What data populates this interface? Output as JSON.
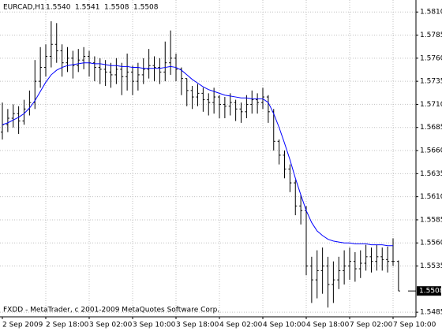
{
  "chart_data": {
    "type": "ohlc",
    "title": "EURCAD,H1",
    "quote": [
      "1.5540",
      "1.5541",
      "1.5508",
      "1.5508"
    ],
    "footer": "FXDD - MetaTrader, c 2001-2009 MetaQuotes Software Corp.",
    "categories": [
      "2 Sep 2009",
      null,
      null,
      null,
      null,
      null,
      null,
      null,
      "2 Sep 18:00",
      null,
      null,
      null,
      null,
      null,
      null,
      null,
      "3 Sep 02:00",
      null,
      null,
      null,
      null,
      null,
      null,
      null,
      "3 Sep 10:00",
      null,
      null,
      null,
      null,
      null,
      null,
      null,
      "3 Sep 18:00",
      null,
      null,
      null,
      null,
      null,
      null,
      null,
      "4 Sep 02:00",
      null,
      null,
      null,
      null,
      null,
      null,
      null,
      "4 Sep 10:00",
      null,
      null,
      null,
      null,
      null,
      null,
      null,
      "4 Sep 18:00",
      null,
      null,
      null,
      null,
      null,
      null,
      null,
      "7 Sep 02:00",
      null,
      null,
      null,
      null,
      null,
      null,
      null,
      "7 Sep 10:00",
      null
    ],
    "open": [
      1.568,
      1.5688,
      1.5695,
      1.57,
      1.5692,
      1.5705,
      1.5712,
      1.5735,
      1.575,
      1.5762,
      1.5775,
      1.5768,
      1.5755,
      1.576,
      1.5752,
      1.5758,
      1.5762,
      1.5755,
      1.575,
      1.5748,
      1.5745,
      1.5742,
      1.5748,
      1.574,
      1.5745,
      1.5735,
      1.5742,
      1.5748,
      1.5752,
      1.575,
      1.5745,
      1.5755,
      1.576,
      1.5748,
      1.5738,
      1.5725,
      1.5718,
      1.5722,
      1.5715,
      1.5712,
      1.5718,
      1.571,
      1.5708,
      1.5712,
      1.5705,
      1.5702,
      1.571,
      1.5715,
      1.5712,
      1.5718,
      1.5702,
      1.567,
      1.5655,
      1.564,
      1.5625,
      1.56,
      1.5595,
      1.5535,
      1.552,
      1.553,
      1.5535,
      1.5515,
      1.552,
      1.553,
      1.5535,
      1.554,
      1.5532,
      1.5538,
      1.5545,
      1.554,
      1.5545,
      1.5542,
      1.554,
      1.554
    ],
    "high": [
      1.5712,
      1.5705,
      1.571,
      1.5708,
      1.5715,
      1.5725,
      1.5758,
      1.5772,
      1.5775,
      1.58,
      1.5798,
      1.5775,
      1.5772,
      1.5768,
      1.577,
      1.5772,
      1.5768,
      1.5762,
      1.576,
      1.5758,
      1.5755,
      1.576,
      1.5755,
      1.5765,
      1.5752,
      1.5755,
      1.576,
      1.577,
      1.5762,
      1.576,
      1.5778,
      1.579,
      1.5765,
      1.575,
      1.5738,
      1.573,
      1.5732,
      1.5728,
      1.5722,
      1.5728,
      1.572,
      1.5718,
      1.5722,
      1.5715,
      1.5712,
      1.572,
      1.5725,
      1.5722,
      1.5728,
      1.572,
      1.5705,
      1.5672,
      1.566,
      1.5645,
      1.5628,
      1.5612,
      1.56,
      1.5545,
      1.5552,
      1.5555,
      1.5545,
      1.554,
      1.5545,
      1.5552,
      1.5555,
      1.555,
      1.5552,
      1.5558,
      1.5555,
      1.5558,
      1.5555,
      1.5556,
      1.5565,
      1.5541
    ],
    "low": [
      1.5672,
      1.568,
      1.5685,
      1.5678,
      1.5688,
      1.5698,
      1.5705,
      1.5728,
      1.574,
      1.575,
      1.5755,
      1.574,
      1.5745,
      1.5738,
      1.5745,
      1.5748,
      1.574,
      1.5735,
      1.5732,
      1.573,
      1.5728,
      1.5732,
      1.572,
      1.5725,
      1.572,
      1.5725,
      1.5732,
      1.5738,
      1.5735,
      1.5732,
      1.5735,
      1.5742,
      1.5735,
      1.572,
      1.5708,
      1.5705,
      1.5708,
      1.5702,
      1.5698,
      1.57,
      1.5695,
      1.5695,
      1.5698,
      1.5692,
      1.569,
      1.5695,
      1.57,
      1.57,
      1.5705,
      1.569,
      1.566,
      1.5645,
      1.563,
      1.5615,
      1.559,
      1.558,
      1.5525,
      1.5495,
      1.55,
      1.5505,
      1.549,
      1.5495,
      1.551,
      1.5515,
      1.552,
      1.5518,
      1.5522,
      1.553,
      1.5528,
      1.553,
      1.553,
      1.5528,
      1.5535,
      1.5508
    ],
    "close": [
      1.5688,
      1.5695,
      1.57,
      1.5692,
      1.5705,
      1.5712,
      1.5735,
      1.575,
      1.5762,
      1.5775,
      1.5768,
      1.5755,
      1.576,
      1.5752,
      1.5758,
      1.5762,
      1.5755,
      1.575,
      1.5748,
      1.5745,
      1.5742,
      1.5748,
      1.574,
      1.5745,
      1.5735,
      1.5742,
      1.5748,
      1.5752,
      1.575,
      1.5745,
      1.5755,
      1.576,
      1.5748,
      1.5738,
      1.5725,
      1.5718,
      1.5722,
      1.5715,
      1.5712,
      1.5718,
      1.571,
      1.5708,
      1.5712,
      1.5705,
      1.5702,
      1.571,
      1.5715,
      1.5712,
      1.5718,
      1.5702,
      1.567,
      1.5655,
      1.564,
      1.5625,
      1.56,
      1.5595,
      1.5535,
      1.552,
      1.553,
      1.5535,
      1.5515,
      1.552,
      1.553,
      1.5535,
      1.554,
      1.5532,
      1.5538,
      1.5545,
      1.554,
      1.5545,
      1.5542,
      1.554,
      1.554,
      1.5508
    ],
    "color": "#000000",
    "line": {
      "color": "#0000ff",
      "values": [
        1.5688,
        1.569,
        1.5693,
        1.5696,
        1.57,
        1.5706,
        1.5714,
        1.5724,
        1.5734,
        1.5742,
        1.5747,
        1.575,
        1.5752,
        1.5753,
        1.5754,
        1.5755,
        1.5755,
        1.5754,
        1.5754,
        1.5753,
        1.5752,
        1.5752,
        1.5751,
        1.5751,
        1.575,
        1.575,
        1.5749,
        1.5749,
        1.5749,
        1.5749,
        1.575,
        1.5751,
        1.575,
        1.5747,
        1.5742,
        1.5737,
        1.5733,
        1.5729,
        1.5726,
        1.5724,
        1.5722,
        1.572,
        1.5719,
        1.5718,
        1.5717,
        1.5717,
        1.5716,
        1.5716,
        1.5716,
        1.5712,
        1.57,
        1.5685,
        1.5668,
        1.565,
        1.563,
        1.5612,
        1.5595,
        1.5582,
        1.5573,
        1.5568,
        1.5564,
        1.5562,
        1.5561,
        1.556,
        1.556,
        1.5559,
        1.5559,
        1.5559,
        1.5558,
        1.5558,
        1.5558,
        1.5557,
        1.5557,
        null
      ]
    },
    "ylim": [
      1.548,
      1.5823
    ],
    "yticks": [
      {
        "value": 1.581,
        "label": "1.5810"
      },
      1.5785,
      {
        "value": 1.576,
        "label": "1.5760"
      },
      1.5735,
      {
        "value": 1.571,
        "label": "1.5710"
      },
      1.5685,
      {
        "value": 1.566,
        "label": "1.5660"
      },
      1.5635,
      {
        "value": 1.561,
        "label": "1.5610"
      },
      1.5585,
      {
        "value": 1.556,
        "label": "1.5560"
      },
      1.5535,
      1.5485
    ],
    "grid": true
  }
}
